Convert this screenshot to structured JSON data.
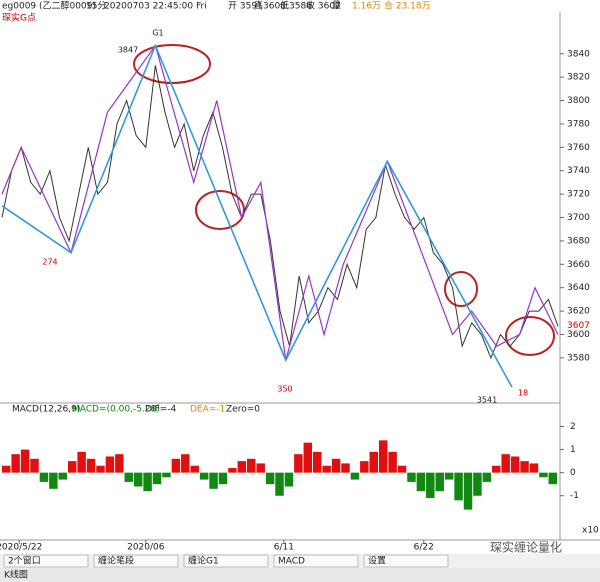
{
  "header": {
    "symbol": "eg0009 (乙二醇0009)",
    "period": "15分",
    "datetime": "20200703 22:45:00 Fri",
    "fields": [
      "开 3591",
      "高3608",
      "低3586",
      "收 3607",
      "量"
    ],
    "volume": "1.16万",
    "oi": "合 23.18万",
    "indicator": "琛实G点"
  },
  "chart_data": [
    {
      "type": "line",
      "ylim": [
        3544,
        3874
      ],
      "xlim": [
        0,
        290
      ],
      "yticks": [
        3580,
        3600,
        3620,
        3640,
        3660,
        3680,
        3700,
        3720,
        3740,
        3760,
        3780,
        3800,
        3820,
        3840
      ],
      "xticks": [
        {
          "value": 9,
          "label": "2020/5/22"
        },
        {
          "value": 75,
          "label": "2020/06"
        },
        {
          "value": 147,
          "label": "6/11"
        },
        {
          "value": 220,
          "label": "6/22"
        }
      ],
      "last_label": "3607",
      "annotations": [
        "G1",
        "3847",
        "274",
        "350",
        "3541",
        "18"
      ],
      "series": [
        {
          "name": "price",
          "color": "#333333",
          "x": [
            0,
            5,
            10,
            15,
            20,
            25,
            30,
            35,
            40,
            45,
            50,
            55,
            60,
            65,
            70,
            75,
            80,
            85,
            90,
            95,
            100,
            105,
            110,
            115,
            120,
            125,
            130,
            135,
            140,
            145,
            150,
            155,
            160,
            165,
            170,
            175,
            180,
            185,
            190,
            195,
            200,
            205,
            210,
            215,
            220,
            225,
            230,
            235,
            240,
            245,
            250,
            255,
            260,
            265,
            270,
            275,
            280,
            285,
            290
          ],
          "values": [
            3700,
            3740,
            3760,
            3730,
            3720,
            3740,
            3700,
            3680,
            3720,
            3760,
            3720,
            3730,
            3780,
            3800,
            3770,
            3760,
            3830,
            3790,
            3760,
            3780,
            3740,
            3770,
            3790,
            3760,
            3720,
            3700,
            3720,
            3720,
            3680,
            3620,
            3590,
            3650,
            3610,
            3620,
            3640,
            3630,
            3660,
            3640,
            3690,
            3700,
            3745,
            3720,
            3700,
            3690,
            3700,
            3670,
            3660,
            3640,
            3590,
            3610,
            3600,
            3580,
            3600,
            3590,
            3600,
            3620,
            3620,
            3630,
            3607
          ]
        },
        {
          "name": "bi",
          "color": "#9933cc",
          "x": [
            0,
            10,
            36,
            55,
            80,
            100,
            112,
            125,
            135,
            148,
            160,
            168,
            178,
            201,
            235,
            245,
            258,
            270,
            278,
            290
          ],
          "values": [
            3720,
            3760,
            3670,
            3790,
            3847,
            3730,
            3800,
            3700,
            3730,
            3578,
            3650,
            3600,
            3660,
            3748,
            3600,
            3620,
            3590,
            3600,
            3640,
            3600
          ]
        },
        {
          "name": "duan",
          "color": "#3399dd",
          "x": [
            0,
            36,
            80,
            148,
            201,
            266
          ],
          "values": [
            3710,
            3670,
            3847,
            3578,
            3748,
            3555
          ]
        }
      ]
    },
    {
      "type": "bar",
      "title": "MACD(12,26,9)",
      "stats": [
        "MACD=(0.00,-5.28)",
        "DIF=-4",
        "DEA=-1",
        "Zero=0"
      ],
      "ylim": [
        -2.7,
        2.8
      ],
      "yticks": [
        2,
        1,
        0,
        -1
      ],
      "unit": "x10",
      "colors": [
        "#e01010",
        "#118811"
      ],
      "values": [
        0.3,
        0.8,
        1.0,
        0.6,
        -0.4,
        -0.7,
        -0.3,
        0.5,
        0.9,
        0.6,
        0.3,
        0.7,
        0.8,
        -0.4,
        -0.6,
        -0.8,
        -0.5,
        -0.2,
        0.6,
        0.8,
        0.3,
        -0.3,
        -0.7,
        -0.5,
        0.2,
        0.5,
        0.6,
        0.4,
        -0.5,
        -1.0,
        -0.6,
        0.8,
        1.3,
        0.9,
        0.3,
        0.6,
        0.4,
        -0.3,
        0.5,
        0.9,
        1.4,
        0.9,
        0.3,
        -0.4,
        -0.8,
        -1.1,
        -0.8,
        -0.3,
        -1.2,
        -1.6,
        -1.0,
        -0.4,
        0.3,
        0.8,
        0.7,
        0.5,
        0.4,
        -0.2,
        -0.5
      ]
    }
  ],
  "toolbar": [
    "2个窗口",
    "缠论笔段",
    "缠论G1",
    "MACD",
    "设置"
  ],
  "tab": "K线图",
  "watermark": "琛实缠论量化"
}
